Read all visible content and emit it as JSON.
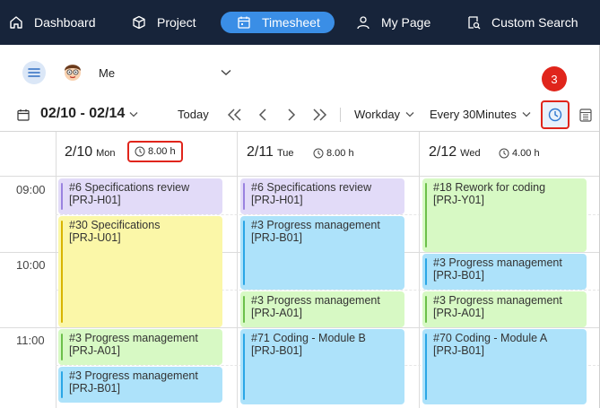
{
  "nav": {
    "items": [
      {
        "label": "Dashboard",
        "icon": "home-icon"
      },
      {
        "label": "Project",
        "icon": "cube-icon"
      },
      {
        "label": "Timesheet",
        "icon": "calendar-icon",
        "active": true
      },
      {
        "label": "My Page",
        "icon": "user-icon"
      },
      {
        "label": "Custom Search",
        "icon": "search-doc-icon"
      }
    ]
  },
  "user": {
    "name": "Me"
  },
  "toolbar": {
    "date_range": "02/10 - 02/14",
    "today_label": "Today",
    "workday_label": "Workday",
    "interval_label": "Every 30Minutes",
    "badge": "3"
  },
  "days": [
    {
      "date": "2/10",
      "dow": "Mon",
      "hours": "8.00 h"
    },
    {
      "date": "2/11",
      "dow": "Tue",
      "hours": "8.00 h"
    },
    {
      "date": "2/12",
      "dow": "Wed",
      "hours": "4.00 h"
    }
  ],
  "time_labels": [
    "09:00",
    "10:00",
    "11:00"
  ],
  "events": {
    "mon": [
      {
        "title": "#6 Specifications review",
        "code": "[PRJ-H01]",
        "color": "#e2dbf8"
      },
      {
        "title": "#30 Specifications",
        "code": "[PRJ-U01]",
        "color": "#fbf7a8"
      },
      {
        "title": "#3 Progress management",
        "code": "[PRJ-A01]",
        "color": "#d7f9c4"
      },
      {
        "title": "#3 Progress management",
        "code": "[PRJ-B01]",
        "color": "#ade2fa"
      }
    ],
    "tue": [
      {
        "title": "#6 Specifications review",
        "code": "[PRJ-H01]",
        "color": "#e2dbf8"
      },
      {
        "title": "#3 Progress management",
        "code": "[PRJ-B01]",
        "color": "#ade2fa"
      },
      {
        "title": "#3 Progress management",
        "code": "[PRJ-A01]",
        "color": "#d7f9c4"
      },
      {
        "title": "#71 Coding - Module B",
        "code": "[PRJ-B01]",
        "color": "#ade2fa"
      }
    ],
    "wed": [
      {
        "title": "#18 Rework for coding",
        "code": "[PRJ-Y01]",
        "color": "#d7f9c4"
      },
      {
        "title": "#3 Progress management",
        "code": "[PRJ-B01]",
        "color": "#ade2fa"
      },
      {
        "title": "#3 Progress management",
        "code": "[PRJ-A01]",
        "color": "#d7f9c4"
      },
      {
        "title": "#70 Coding - Module A",
        "code": "[PRJ-B01]",
        "color": "#ade2fa"
      }
    ]
  },
  "colors": {
    "nav_bg": "#17243a",
    "accent": "#3a8ee6",
    "highlight": "#e0251b"
  }
}
